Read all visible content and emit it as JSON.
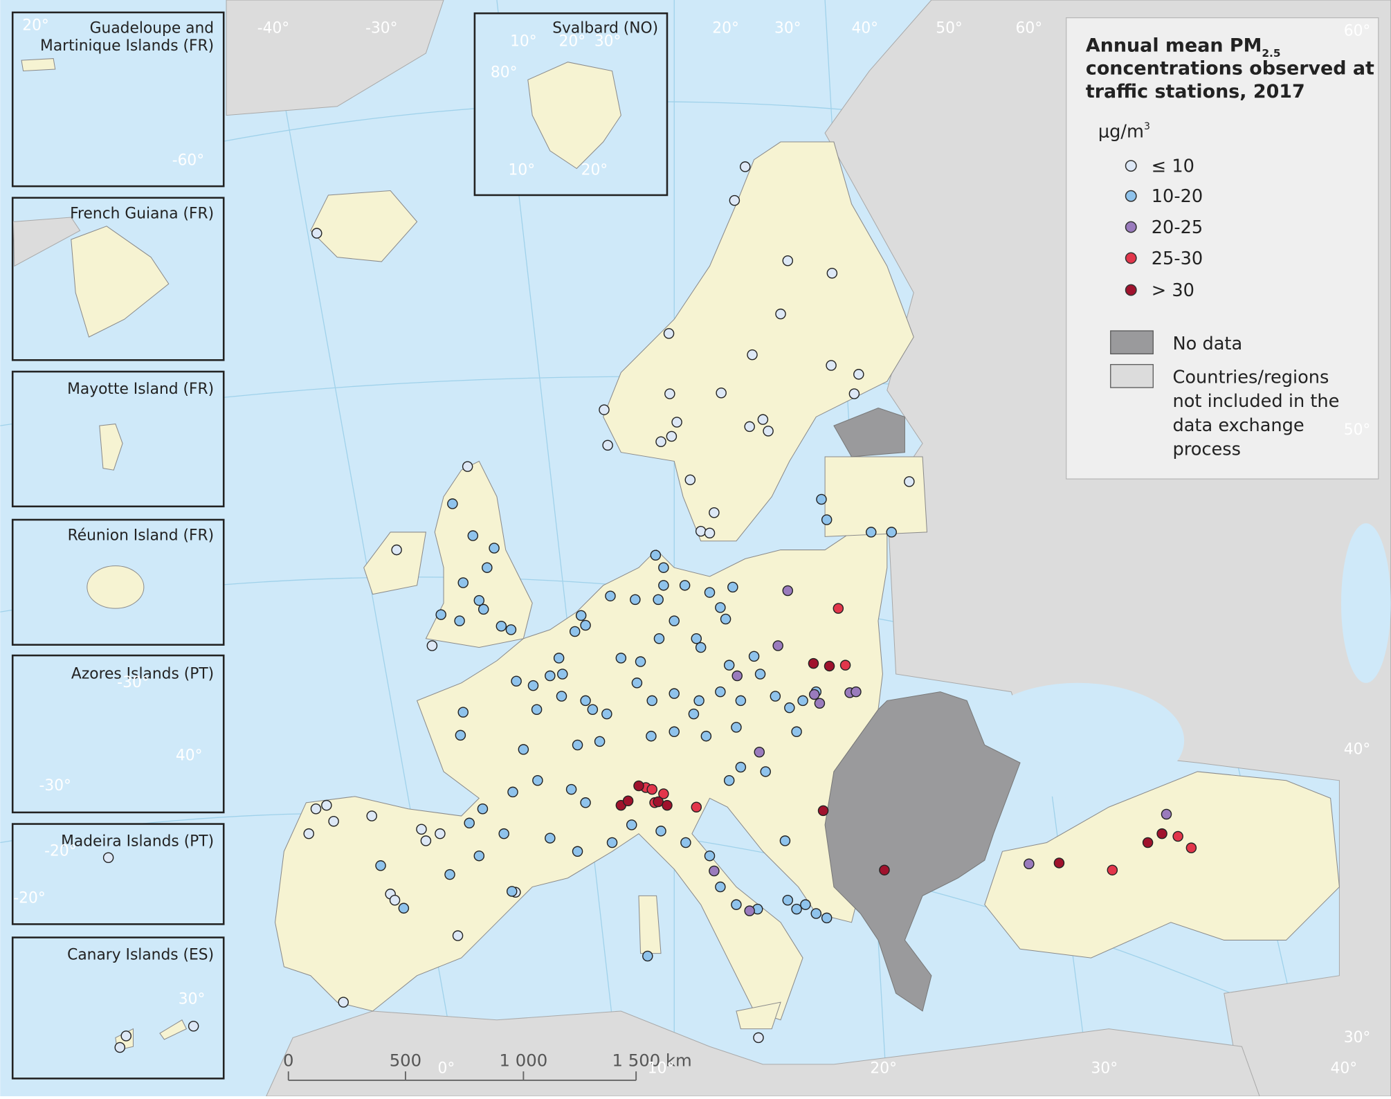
{
  "legend": {
    "title": {
      "line_1": "Annual mean PM",
      "subscript": "2.5",
      "line_2": "concentrations observed at",
      "line_3": "traffic stations, 2017"
    },
    "unit": {
      "base": "μg/m",
      "superscript": "3"
    },
    "classes": [
      {
        "label": "≤ 10",
        "color": "#dde8f6"
      },
      {
        "label": "10-20",
        "color": "#8fc3ec"
      },
      {
        "label": "20-25",
        "color": "#9a7bbd"
      },
      {
        "label": "25-30",
        "color": "#e2364b"
      },
      {
        "label": "> 30",
        "color": "#a0122d"
      }
    ],
    "areas": [
      {
        "label": [
          "No data"
        ],
        "color": "#9a9a9c"
      },
      {
        "label": [
          "Countries/regions",
          "not included in the",
          "data exchange",
          "process"
        ],
        "color": "#dcdcdc"
      }
    ]
  },
  "insets": [
    {
      "name": [
        "Guadeloupe and",
        "Martinique Islands (FR)"
      ]
    },
    {
      "name": [
        "French Guiana (FR)"
      ]
    },
    {
      "name": [
        "Mayotte Island (FR)"
      ]
    },
    {
      "name": [
        "Réunion Island (FR)"
      ]
    },
    {
      "name": [
        "Azores Islands (PT)"
      ]
    },
    {
      "name": [
        "Madeira Islands (PT)"
      ]
    },
    {
      "name": [
        "Canary Islands (ES)"
      ]
    },
    {
      "name": [
        "Svalbard (NO)"
      ]
    }
  ],
  "scale_bar": [
    "0",
    "500",
    "1 000",
    "1 500 km"
  ],
  "graticule_labels": [
    "-40°",
    "-30°",
    "20°",
    "30°",
    "40°",
    "50°",
    "60°",
    "60°",
    "50°",
    "40°",
    "30°",
    "40°",
    "30°",
    "20°",
    "10°",
    "0°",
    "20°",
    "-60°",
    "10°",
    "20°",
    "30°",
    "80°",
    "10°",
    "20°",
    "-30°",
    "40°",
    "-30°",
    "-20°",
    "-20°",
    "30°"
  ]
}
